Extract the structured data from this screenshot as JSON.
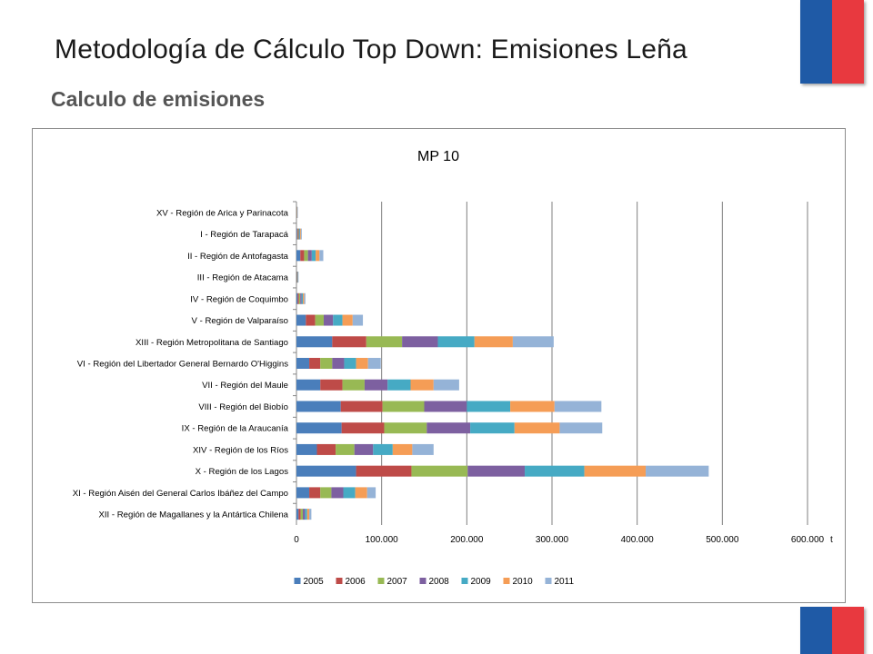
{
  "slide": {
    "title": "Metodología de Cálculo Top Down: Emisiones Leña",
    "subtitle": "Calculo de emisiones"
  },
  "colors": {
    "flag_blue": "#1f5aa6",
    "flag_red": "#e8393f",
    "gridline": "#7f7f7f"
  },
  "chart_data": {
    "type": "bar",
    "orientation": "horizontal",
    "stacked": true,
    "title": "MP 10",
    "xlabel": "",
    "xunit": "t",
    "ylabel": "",
    "xlim": [
      0,
      600000
    ],
    "xticks": [
      0,
      100000,
      200000,
      300000,
      400000,
      500000,
      600000
    ],
    "xtick_labels": [
      "0",
      "100.000",
      "200.000",
      "300.000",
      "400.000",
      "500.000",
      "600.000"
    ],
    "grid": true,
    "legend_position": "bottom",
    "categories": [
      "XV - Región de Arica y Parinacota",
      "I - Región de Tarapacá",
      "II - Región de Antofagasta",
      "III - Región de Atacama",
      "IV - Región de Coquimbo",
      "V - Región de Valparaíso",
      "XIII - Región Metropolitana de Santiago",
      "VI - Región del Libertador General Bernardo O'Higgins",
      "VII - Región del Maule",
      "VIII - Región del Biobío",
      "IX - Región de la Araucanía",
      "XIV - Región de los Ríos",
      "X - Región de los Lagos",
      "XI - Región Aisén del General Carlos Ibáñez del Campo",
      "XII - Región de Magallanes y la Antártica Chilena"
    ],
    "series": [
      {
        "name": "2005",
        "color": "#4a7ebb",
        "values": [
          150,
          900,
          4500,
          300,
          1500,
          11000,
          42000,
          15000,
          28000,
          52000,
          53000,
          24000,
          70000,
          15000,
          2500
        ]
      },
      {
        "name": "2006",
        "color": "#be4b48",
        "values": [
          150,
          900,
          4500,
          300,
          1500,
          11000,
          40000,
          13000,
          26000,
          49000,
          50000,
          22000,
          65000,
          13000,
          2500
        ]
      },
      {
        "name": "2007",
        "color": "#98b954",
        "values": [
          150,
          900,
          4500,
          300,
          1500,
          10000,
          42000,
          14000,
          26000,
          49000,
          50000,
          22000,
          66000,
          13000,
          2500
        ]
      },
      {
        "name": "2008",
        "color": "#7d60a0",
        "values": [
          150,
          900,
          4500,
          300,
          1500,
          11000,
          42000,
          14000,
          27000,
          50000,
          51000,
          22000,
          67000,
          14000,
          2500
        ]
      },
      {
        "name": "2009",
        "color": "#46aac4",
        "values": [
          150,
          900,
          4500,
          300,
          1500,
          11000,
          43000,
          14000,
          27000,
          51000,
          52000,
          23000,
          70000,
          14000,
          2500
        ]
      },
      {
        "name": "2010",
        "color": "#f59d56",
        "values": [
          150,
          900,
          4500,
          300,
          1500,
          12000,
          45000,
          14000,
          27000,
          52000,
          53000,
          23000,
          72000,
          14000,
          2500
        ]
      },
      {
        "name": "2011",
        "color": "#95b3d7",
        "values": [
          150,
          900,
          4500,
          300,
          1500,
          12000,
          48000,
          15000,
          30000,
          55000,
          50000,
          25000,
          74000,
          10000,
          2500
        ]
      }
    ]
  }
}
